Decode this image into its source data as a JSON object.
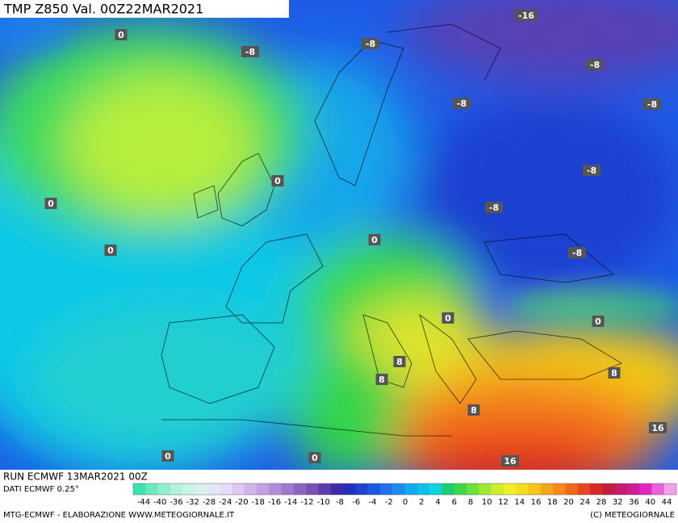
{
  "title": "TMP  Z850  Val. 00Z22MAR2021",
  "contour_labels": [
    "0",
    "-8",
    "-8",
    "-16",
    "-8",
    "-8",
    "-8",
    "0",
    "0",
    "-8",
    "-8",
    "0",
    "0",
    "-8",
    "0",
    "0",
    "8",
    "8",
    "8",
    "8",
    "16",
    "0",
    "0",
    "16"
  ],
  "run": "RUN ECMWF 13MAR2021 00Z",
  "source": "DATI ECMWF 0.25°",
  "legend_labels": [
    -44,
    -40,
    -36,
    -32,
    -28,
    -24,
    -20,
    -18,
    -16,
    -14,
    -12,
    -10,
    -8,
    -6,
    -4,
    -2,
    0,
    2,
    4,
    6,
    8,
    10,
    12,
    14,
    16,
    18,
    20,
    24,
    28,
    32,
    36,
    40,
    44
  ],
  "footer_left": "MTG-ECMWF - ELABORAZIONE WWW.METEOGIORNALE.IT",
  "footer_right": "(C) METEOGIORNALE"
}
